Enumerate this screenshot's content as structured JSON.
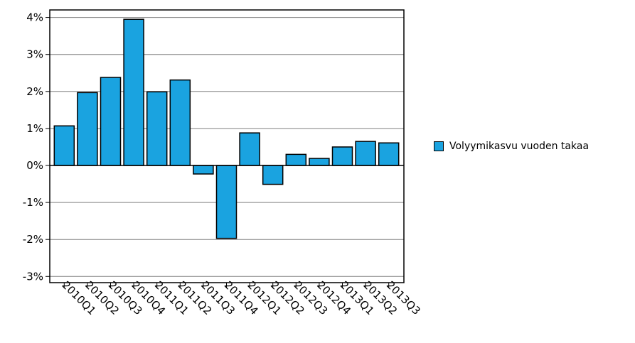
{
  "colors": {
    "bar": "#1aa3e0",
    "bar_stroke": "#000000",
    "grid": "#808080",
    "zero_line": "#000000"
  },
  "chart_data": {
    "type": "bar",
    "categories": [
      "2010Q1",
      "2010Q2",
      "2010Q3",
      "2010Q4",
      "2011Q1",
      "2011Q2",
      "2011Q3",
      "2011Q4",
      "2012Q1",
      "2012Q2",
      "2012Q3",
      "2012Q4",
      "2013Q1",
      "2013Q2",
      "2013Q3"
    ],
    "series": [
      {
        "name": "Volyymikasvu vuoden takaa",
        "values": [
          1.07,
          1.97,
          2.38,
          3.95,
          1.99,
          2.31,
          -0.23,
          -1.97,
          0.88,
          -0.51,
          0.3,
          0.19,
          0.5,
          0.65,
          0.61
        ]
      }
    ],
    "ylim": [
      -3.2,
      4.2
    ],
    "yticks": [
      4,
      3,
      2,
      1,
      0,
      -1,
      -2,
      -3
    ],
    "ytick_labels": [
      "4%",
      "3%",
      "2%",
      "1%",
      "0%",
      "-1%",
      "-2%",
      "-3%"
    ],
    "grid": true,
    "legend_position": "right",
    "title": "",
    "xlabel": "",
    "ylabel": ""
  }
}
